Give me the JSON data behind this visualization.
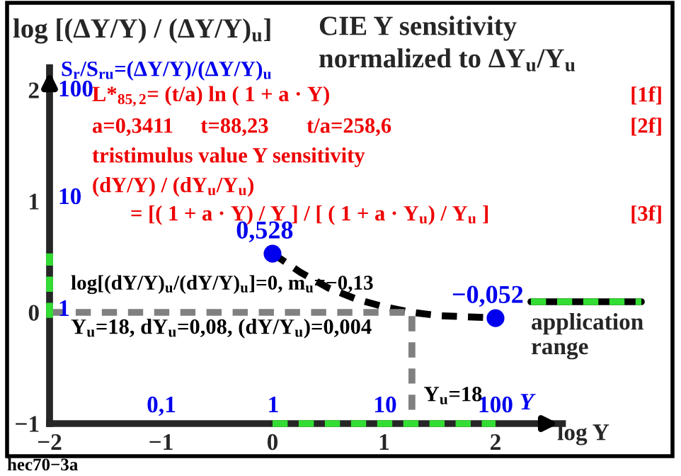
{
  "chart_data": {
    "type": "line",
    "title": "CIE Y sensitivity",
    "subtitle": "normalized to ΔY$_{u}$/Y$_{u}$",
    "xlabel": "log Y",
    "ylabel": "log [(ΔY/Y) / (ΔY/Y)$_{u}$]",
    "xlim": [
      -2,
      2.6
    ],
    "ylim": [
      -1,
      2.2
    ],
    "xticks": [
      -2,
      -1,
      0,
      1,
      2
    ],
    "yticks": [
      -1,
      0,
      1,
      2
    ],
    "legend": "right",
    "series": [
      {
        "color": "#000000",
        "line_style": "dashed",
        "x": [
          0,
          0.25,
          0.5,
          0.75,
          1,
          1.25,
          1.5,
          1.75,
          2
        ],
        "values": [
          0.53,
          0.36,
          0.22,
          0.12,
          0.05,
          0.0,
          -0.03,
          -0.04,
          -0.05
        ]
      },
      {
        "color": "#808080",
        "line_style": "dashed",
        "x": [
          -2,
          1.25,
          1.25
        ],
        "values": [
          0,
          0,
          -1
        ]
      },
      {
        "name": "application range",
        "color": "#33dd33",
        "line_style": "dashed",
        "x": [
          0,
          2,
          null,
          -2,
          -2
        ],
        "values": [
          -1,
          -1,
          null,
          -0.05,
          0.53
        ]
      },
      {
        "type": "scatter",
        "color": "#0000ee",
        "x": [
          0,
          2
        ],
        "values": [
          0.528,
          -0.052
        ],
        "value_labels": [
          "0,528",
          "−0,052"
        ]
      }
    ],
    "annotations": [
      "L*$_{85,2}$= (t/a) ln ( 1 + a · Y)",
      "[1f]",
      "a=0,3411     t=88,23       t/a=258,6",
      "[2f]",
      "tristimulus value Y sensitivity",
      "(dY/Y) / (dY$_{u}$/Y$_{u}$)",
      "= [( 1 + a · Y) / Y ] / [ ( 1 + a · Y$_{u}$) / Y$_{u}$ ]",
      "[3f]",
      "log[(dY/Y)$_{u}$/(dY/Y)$_{u}$]=0, m$_{u}$=−0,13",
      "Y$_{u}$=18, dY$_{u}$=0,08, (dY/Y$_{u}$)=0,004",
      {
        "text": "Y$_{u}$=18",
        "x": 1.25,
        "y": -1
      },
      "hec70−3a",
      "S$_{r}$/S$_{ru}$=(ΔY/Y)/(ΔY/Y)$_{u}$",
      "1",
      "10",
      "100",
      "0,1",
      "1",
      "10",
      "100",
      "Y"
    ]
  }
}
